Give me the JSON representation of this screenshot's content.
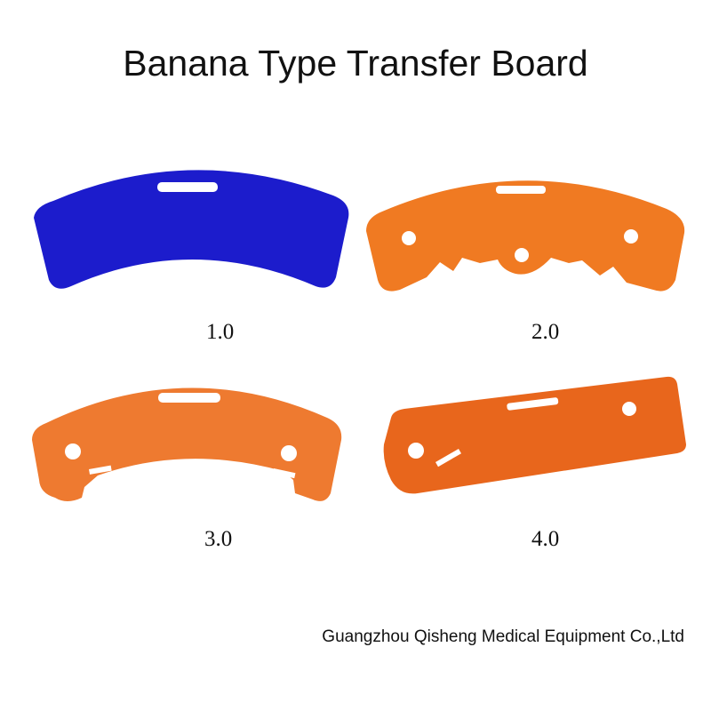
{
  "title": "Banana Type Transfer Board",
  "products": [
    {
      "label": "1.0",
      "color": "#1c1ccc"
    },
    {
      "label": "2.0",
      "color": "#f07a22"
    },
    {
      "label": "3.0",
      "color": "#ee7a30"
    },
    {
      "label": "4.0",
      "color": "#e8661c"
    }
  ],
  "footer": "Guangzhou Qisheng Medical Equipment Co.,Ltd"
}
